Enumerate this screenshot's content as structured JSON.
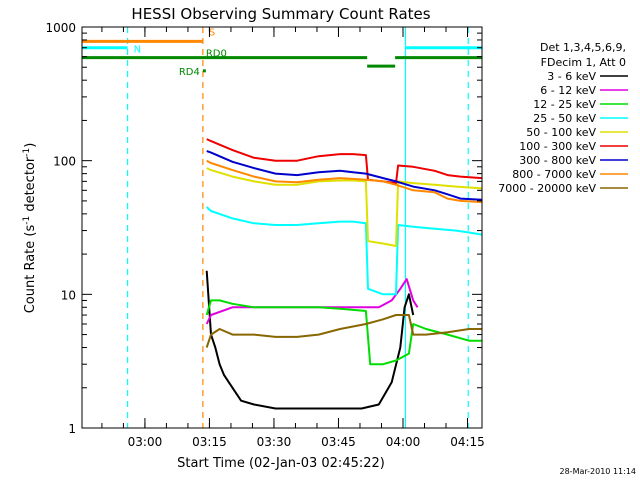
{
  "chart_data": {
    "type": "line",
    "title": "HESSI Observing Summary Count Rates",
    "xlabel": "Start Time (02-Jan-03 02:45:22)",
    "ylabel_main": "Count Rate (s",
    "ylabel_sup1": "-1",
    "ylabel_mid": " detector",
    "ylabel_sup2": "-1",
    "ylabel_end": ")",
    "y_scale": "log",
    "ylim": [
      1,
      1000
    ],
    "xlim_minutes": [
      0,
      93
    ],
    "x_ticks": [
      {
        "label": "03:00",
        "min": 14.63
      },
      {
        "label": "03:15",
        "min": 29.63
      },
      {
        "label": "03:30",
        "min": 44.63
      },
      {
        "label": "03:45",
        "min": 59.63
      },
      {
        "label": "04:00",
        "min": 74.63
      },
      {
        "label": "04:15",
        "min": 89.63
      }
    ],
    "y_ticks": [
      {
        "label": "1",
        "value": 1
      },
      {
        "label": "10",
        "value": 10
      },
      {
        "label": "100",
        "value": 100
      },
      {
        "label": "1000",
        "value": 1000
      }
    ],
    "legend": {
      "placement": "right",
      "header": [
        "Det 1,3,4,5,6,9,",
        "FDecim 1, Att 0"
      ]
    },
    "series": [
      {
        "name": "3 - 6 keV",
        "color": "#000000",
        "points": [
          [
            29.0,
            15
          ],
          [
            30,
            5
          ],
          [
            31,
            4
          ],
          [
            32,
            3
          ],
          [
            33,
            2.5
          ],
          [
            35,
            2
          ],
          [
            37,
            1.6
          ],
          [
            40,
            1.5
          ],
          [
            45,
            1.4
          ],
          [
            50,
            1.4
          ],
          [
            55,
            1.4
          ],
          [
            60,
            1.4
          ],
          [
            65,
            1.4
          ],
          [
            69,
            1.5
          ],
          [
            72,
            2.2
          ],
          [
            74,
            4
          ],
          [
            75,
            8
          ],
          [
            76,
            10
          ],
          [
            77,
            7
          ]
        ]
      },
      {
        "name": "6 - 12 keV",
        "color": "#e000e0",
        "points": [
          [
            29.0,
            6
          ],
          [
            30,
            7
          ],
          [
            35,
            8
          ],
          [
            40,
            8
          ],
          [
            45,
            8
          ],
          [
            50,
            8
          ],
          [
            55,
            8
          ],
          [
            60,
            8
          ],
          [
            65,
            8
          ],
          [
            69,
            8
          ],
          [
            72,
            9
          ],
          [
            74,
            11
          ],
          [
            75.5,
            13
          ],
          [
            77,
            9
          ],
          [
            78,
            8
          ]
        ]
      },
      {
        "name": "12 - 25 keV",
        "color": "#00dd00",
        "points": [
          [
            29.0,
            7
          ],
          [
            30,
            9
          ],
          [
            32,
            9
          ],
          [
            35,
            8.5
          ],
          [
            40,
            8
          ],
          [
            45,
            8
          ],
          [
            50,
            8
          ],
          [
            55,
            8
          ],
          [
            60,
            7.8
          ],
          [
            66,
            7.5
          ],
          [
            67,
            3
          ],
          [
            70,
            3
          ],
          [
            73,
            3.2
          ],
          [
            76,
            3.6
          ],
          [
            77,
            6
          ],
          [
            80,
            5.5
          ],
          [
            85,
            5
          ],
          [
            90,
            4.5
          ],
          [
            93,
            4.5
          ]
        ]
      },
      {
        "name": "25 - 50 keV",
        "color": "#00ffff",
        "points": [
          [
            29.0,
            45
          ],
          [
            30,
            42
          ],
          [
            35,
            37
          ],
          [
            40,
            34
          ],
          [
            45,
            33
          ],
          [
            50,
            33
          ],
          [
            55,
            34
          ],
          [
            60,
            35
          ],
          [
            63,
            35
          ],
          [
            66,
            34
          ],
          [
            66.5,
            11
          ],
          [
            70,
            10
          ],
          [
            73,
            10
          ],
          [
            73.5,
            33
          ],
          [
            77,
            32
          ],
          [
            82,
            31
          ],
          [
            87,
            30
          ],
          [
            90,
            29
          ],
          [
            93,
            28
          ]
        ]
      },
      {
        "name": "50 - 100 keV",
        "color": "#e0e000",
        "points": [
          [
            29.0,
            88
          ],
          [
            30,
            85
          ],
          [
            35,
            76
          ],
          [
            40,
            70
          ],
          [
            45,
            66
          ],
          [
            50,
            66
          ],
          [
            55,
            70
          ],
          [
            60,
            71
          ],
          [
            63,
            71
          ],
          [
            66,
            70
          ],
          [
            66.5,
            25
          ],
          [
            70,
            24
          ],
          [
            73,
            23
          ],
          [
            73.5,
            70
          ],
          [
            77,
            68
          ],
          [
            82,
            66
          ],
          [
            87,
            64
          ],
          [
            90,
            63
          ],
          [
            93,
            62
          ]
        ]
      },
      {
        "name": "100 - 300 keV",
        "color": "#ee0000",
        "points": [
          [
            29.0,
            145
          ],
          [
            30,
            140
          ],
          [
            35,
            120
          ],
          [
            40,
            105
          ],
          [
            45,
            100
          ],
          [
            50,
            100
          ],
          [
            55,
            108
          ],
          [
            60,
            112
          ],
          [
            63,
            112
          ],
          [
            66,
            110
          ],
          [
            66.5,
            72
          ],
          [
            70,
            70
          ],
          [
            73,
            68
          ],
          [
            73.5,
            92
          ],
          [
            77,
            90
          ],
          [
            82,
            84
          ],
          [
            85,
            78
          ],
          [
            88,
            76
          ],
          [
            93,
            74
          ]
        ]
      },
      {
        "name": "300 - 800 keV",
        "color": "#0000cc",
        "points": [
          [
            29.0,
            118
          ],
          [
            30,
            115
          ],
          [
            35,
            98
          ],
          [
            40,
            88
          ],
          [
            45,
            80
          ],
          [
            50,
            78
          ],
          [
            55,
            82
          ],
          [
            60,
            84
          ],
          [
            63,
            82
          ],
          [
            66,
            80
          ],
          [
            70,
            74
          ],
          [
            73,
            70
          ],
          [
            77,
            64
          ],
          [
            82,
            60
          ],
          [
            85,
            56
          ],
          [
            88,
            52
          ],
          [
            93,
            51
          ]
        ]
      },
      {
        "name": "800 - 7000 keV",
        "color": "#ff8800",
        "points": [
          [
            29.0,
            100
          ],
          [
            30,
            96
          ],
          [
            35,
            85
          ],
          [
            40,
            76
          ],
          [
            45,
            70
          ],
          [
            50,
            69
          ],
          [
            55,
            72
          ],
          [
            60,
            74
          ],
          [
            63,
            73
          ],
          [
            66,
            72
          ],
          [
            70,
            70
          ],
          [
            73,
            66
          ],
          [
            77,
            60
          ],
          [
            82,
            58
          ],
          [
            85,
            52
          ],
          [
            88,
            50
          ],
          [
            93,
            49
          ]
        ]
      },
      {
        "name": "7000 - 20000 keV",
        "color": "#886600",
        "points": [
          [
            29.0,
            4
          ],
          [
            30,
            5
          ],
          [
            32,
            5.5
          ],
          [
            35,
            5
          ],
          [
            40,
            5
          ],
          [
            45,
            4.8
          ],
          [
            50,
            4.8
          ],
          [
            55,
            5
          ],
          [
            60,
            5.5
          ],
          [
            66,
            6
          ],
          [
            70,
            6.5
          ],
          [
            73,
            7
          ],
          [
            76,
            7
          ],
          [
            77,
            5
          ],
          [
            80,
            5
          ],
          [
            85,
            5.2
          ],
          [
            90,
            5.5
          ],
          [
            93,
            5.5
          ]
        ]
      }
    ],
    "vertical_markers": [
      {
        "min": 10.6,
        "color": "#00ffff",
        "style": "dashed"
      },
      {
        "min": 28.1,
        "color": "#ff8800",
        "style": "dashed"
      },
      {
        "min": 75.2,
        "color": "#00ffff",
        "style": "solid"
      },
      {
        "min": 89.8,
        "color": "#00ffff",
        "style": "dashed"
      }
    ],
    "flag_bars": [
      {
        "label": "S",
        "color": "#ff8800",
        "y_value": 780,
        "segments": [
          [
            0,
            28.1
          ]
        ]
      },
      {
        "label": "N",
        "color": "#00ffff",
        "y_value": 700,
        "segments": [
          [
            0,
            10.6
          ],
          [
            75.2,
            93
          ]
        ]
      },
      {
        "label": "RD0",
        "color": "#008800",
        "y_value": 590,
        "segments": [
          [
            0,
            66.3
          ],
          [
            72.8,
            93
          ]
        ]
      },
      {
        "label": "",
        "color": "#008800",
        "y_value": 510,
        "segments": [
          [
            66.3,
            72.8
          ]
        ]
      },
      {
        "label": "RD4",
        "color": "#008800",
        "y_value": 470,
        "segments": [
          [
            28.1,
            28.8
          ]
        ]
      }
    ],
    "footer_timestamp": "28-Mar-2010 11:14"
  }
}
